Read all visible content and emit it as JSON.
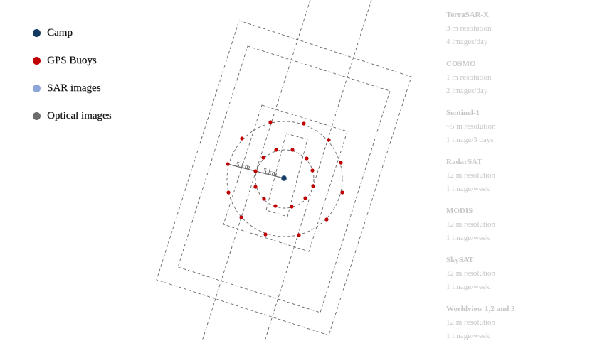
{
  "legend": [
    {
      "label": "Camp",
      "color": "#12385f"
    },
    {
      "label": "GPS Buoys",
      "color": "#c00000"
    },
    {
      "label": "SAR images",
      "color": "#8ea5d8"
    },
    {
      "label": "Optical images",
      "color": "#6b6b6b"
    }
  ],
  "diagram": {
    "inner_distance_label": "5 km",
    "outer_distance_label": "5 km",
    "camp_color": "#12385f",
    "buoy_color": "#c00000",
    "footprint_color": "#666666"
  },
  "sensors": [
    {
      "name": "TerraSAR-X",
      "resolution": "3 m resolution",
      "frequency": "4 images/day"
    },
    {
      "name": "COSMO",
      "resolution": "1 m resolution",
      "frequency": "2 images/day"
    },
    {
      "name": "Sentinel-1",
      "resolution": "~5 m resolution",
      "frequency": "1 image/3 days"
    },
    {
      "name": "RadarSAT",
      "resolution": "12 m resolution",
      "frequency": "1 image/week"
    },
    {
      "name": "MODIS",
      "resolution": "12 m resolution",
      "frequency": "1 image/week"
    },
    {
      "name": "SkySAT",
      "resolution": "12 m resolution",
      "frequency": "1 image/week"
    },
    {
      "name": "Worldview 1,2 and 3",
      "resolution": "12 m resolution",
      "frequency": "1 image/week"
    }
  ]
}
